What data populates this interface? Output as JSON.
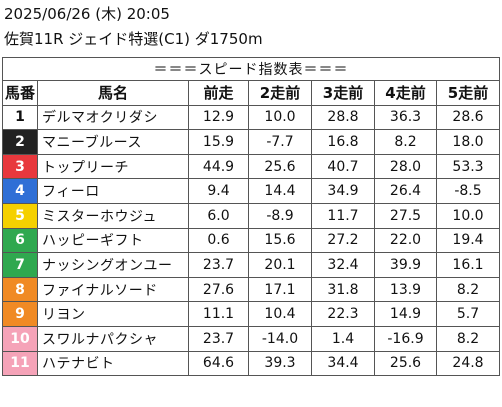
{
  "header": {
    "datetime": "2025/06/26 (木) 20:05",
    "race": "佐賀11R ジェイド特選(C1) ダ1750m"
  },
  "banner": "＝＝＝スピード指数表＝＝＝",
  "columns": [
    "馬番",
    "馬名",
    "前走",
    "2走前",
    "3走前",
    "4走前",
    "5走前"
  ],
  "rows": [
    {
      "no": "1",
      "name": "デルマオクリダシ",
      "v": [
        "12.9",
        "10.0",
        "28.8",
        "36.3",
        "28.6"
      ],
      "bg": "#ffffff",
      "fg": "#111111"
    },
    {
      "no": "2",
      "name": "マニーブルース",
      "v": [
        "15.9",
        "-7.7",
        "16.8",
        "8.2",
        "18.0"
      ],
      "bg": "#222222",
      "fg": "#ffffff"
    },
    {
      "no": "3",
      "name": "トップリーチ",
      "v": [
        "44.9",
        "25.6",
        "40.7",
        "28.0",
        "53.3"
      ],
      "bg": "#e8383d",
      "fg": "#ffffff"
    },
    {
      "no": "4",
      "name": "フィーロ",
      "v": [
        "9.4",
        "14.4",
        "34.9",
        "26.4",
        "-8.5"
      ],
      "bg": "#2f6fd6",
      "fg": "#ffffff"
    },
    {
      "no": "5",
      "name": "ミスターホウジュ",
      "v": [
        "6.0",
        "-8.9",
        "11.7",
        "27.5",
        "10.0"
      ],
      "bg": "#f5d000",
      "fg": "#ffffff"
    },
    {
      "no": "6",
      "name": "ハッピーギフト",
      "v": [
        "0.6",
        "15.6",
        "27.2",
        "22.0",
        "19.4"
      ],
      "bg": "#2fa84f",
      "fg": "#ffffff"
    },
    {
      "no": "7",
      "name": "ナッシングオンユー",
      "v": [
        "23.7",
        "20.1",
        "32.4",
        "39.9",
        "16.1"
      ],
      "bg": "#2fa84f",
      "fg": "#ffffff"
    },
    {
      "no": "8",
      "name": "ファイナルソード",
      "v": [
        "27.6",
        "17.1",
        "31.8",
        "13.9",
        "8.2"
      ],
      "bg": "#f08a24",
      "fg": "#ffffff"
    },
    {
      "no": "9",
      "name": "リヨン",
      "v": [
        "11.1",
        "10.4",
        "22.3",
        "14.9",
        "5.7"
      ],
      "bg": "#f08a24",
      "fg": "#ffffff"
    },
    {
      "no": "10",
      "name": "スワルナパクシャ",
      "v": [
        "23.7",
        "-14.0",
        "1.4",
        "-16.9",
        "8.2"
      ],
      "bg": "#f5a3b8",
      "fg": "#ffffff"
    },
    {
      "no": "11",
      "name": "ハテナビト",
      "v": [
        "64.6",
        "39.3",
        "34.4",
        "25.6",
        "24.8"
      ],
      "bg": "#f5a3b8",
      "fg": "#ffffff"
    }
  ]
}
